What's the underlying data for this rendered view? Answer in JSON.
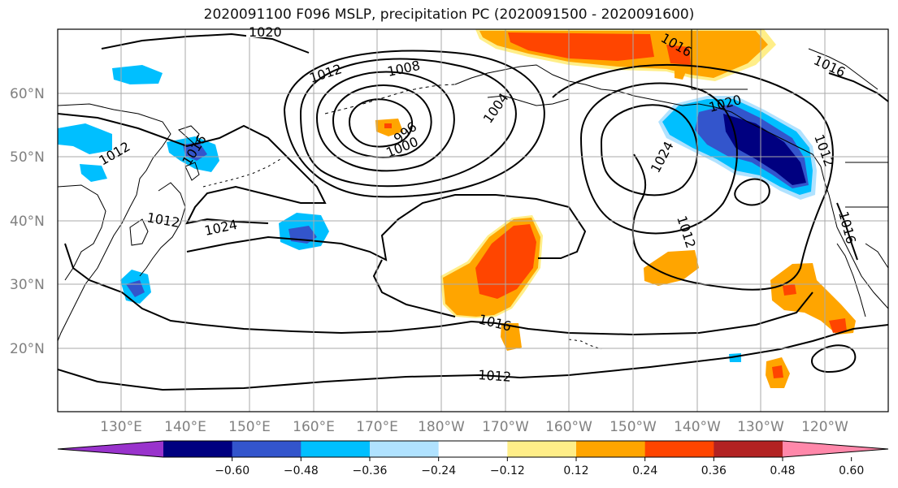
{
  "title": "2020091100 F096 MSLP, precipitation PC (2020091500 - 2020091600)",
  "lat_labels": [
    "60°N",
    "50°N",
    "40°N",
    "30°N",
    "20°N"
  ],
  "lon_labels": [
    "130°E",
    "140°E",
    "150°E",
    "160°E",
    "170°E",
    "180°W",
    "170°W",
    "160°W",
    "150°W",
    "140°W",
    "130°W",
    "120°W"
  ],
  "contour_labels": [
    "1020",
    "1012",
    "1008",
    "1004",
    "996",
    "1000",
    "1016",
    "1012",
    "1012",
    "1024",
    "1020",
    "1024",
    "1012",
    "1016",
    "1016",
    "1012",
    "1016",
    "1012"
  ],
  "colorbar": {
    "colors": [
      "#9933cc",
      "#000080",
      "#3355cc",
      "#00bfff",
      "#b0e2ff",
      "#ffffff",
      "#ffee88",
      "#ffa500",
      "#ff4500",
      "#b22222",
      "#ff88aa"
    ],
    "tick_labels": [
      "−0.60",
      "−0.48",
      "−0.36",
      "−0.24",
      "−0.12",
      "0.12",
      "0.24",
      "0.36",
      "0.48",
      "0.60"
    ]
  }
}
